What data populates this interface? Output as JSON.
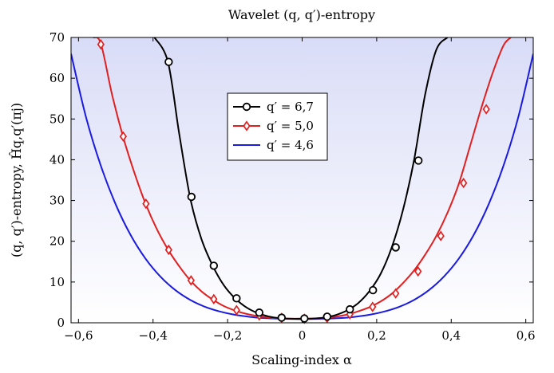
{
  "chart_data": {
    "type": "line",
    "title": "Wavelet (q, q′)-entropy",
    "xlabel": "Scaling-index α",
    "ylabel": "(q, q′)-entropy, Ĥq,q′(πj)",
    "xlim": [
      -0.62,
      0.62
    ],
    "ylim": [
      0,
      70
    ],
    "x_ticks": [
      -0.6,
      -0.4,
      -0.2,
      0,
      0.2,
      0.4,
      0.6
    ],
    "x_tick_labels": [
      "−0,6",
      "−0,4",
      "−0,2",
      "0",
      "0,2",
      "0,4",
      "0,6"
    ],
    "y_ticks": [
      0,
      10,
      20,
      30,
      40,
      50,
      60,
      70
    ],
    "y_tick_labels": [
      "0",
      "10",
      "20",
      "30",
      "40",
      "50",
      "60",
      "70"
    ],
    "legend_position": "upper-center",
    "colors": {
      "background_top": "#d9dcf7",
      "background_bottom": "#ffffff"
    },
    "series": [
      {
        "name": "q′ = 6,7",
        "color": "#000000",
        "marker": "circle",
        "x": [
          -0.396,
          -0.36,
          -0.33,
          -0.3,
          -0.27,
          -0.24,
          -0.21,
          -0.18,
          -0.15,
          -0.12,
          -0.09,
          -0.06,
          -0.03,
          0,
          0.03,
          0.06,
          0.09,
          0.12,
          0.15,
          0.18,
          0.21,
          0.24,
          0.27,
          0.3,
          0.33,
          0.36,
          0.39
        ],
        "y": [
          70,
          64,
          46.5,
          30.5,
          20.5,
          14,
          9.2,
          6,
          3.8,
          2.4,
          1.55,
          1.15,
          1.0,
          1.0,
          1.05,
          1.3,
          1.9,
          3.0,
          4.8,
          7.7,
          11.9,
          18.4,
          27.5,
          39.8,
          56,
          67,
          70
        ],
        "marker_x": [
          -0.358,
          -0.297,
          -0.237,
          -0.176,
          -0.115,
          -0.055,
          0.006,
          0.067,
          0.128,
          0.19,
          0.251,
          0.312
        ],
        "marker_y": [
          64,
          30.9,
          14,
          6,
          2.5,
          1.25,
          1.05,
          1.5,
          3.3,
          8.0,
          18.5,
          39.8
        ]
      },
      {
        "name": "q′ = 5,0",
        "color": "#e02020",
        "marker": "diamond",
        "x": [
          -0.56,
          -0.54,
          -0.51,
          -0.48,
          -0.45,
          -0.42,
          -0.39,
          -0.36,
          -0.33,
          -0.3,
          -0.27,
          -0.24,
          -0.21,
          -0.18,
          -0.15,
          -0.12,
          -0.09,
          -0.06,
          -0.03,
          0,
          0.03,
          0.06,
          0.09,
          0.12,
          0.15,
          0.18,
          0.21,
          0.24,
          0.27,
          0.3,
          0.33,
          0.36,
          0.39,
          0.42,
          0.45,
          0.48,
          0.51,
          0.54,
          0.56
        ],
        "y": [
          70,
          68.5,
          56,
          45.5,
          36.8,
          29.2,
          23,
          18,
          13.9,
          10.4,
          7.7,
          5.7,
          4.1,
          3.0,
          2.2,
          1.65,
          1.3,
          1.1,
          1.0,
          1.0,
          1.05,
          1.2,
          1.5,
          2.0,
          2.8,
          3.8,
          5.2,
          7.1,
          9.7,
          12.8,
          16.7,
          21.3,
          27,
          34,
          43.2,
          52.5,
          61,
          68,
          70
        ],
        "marker_x": [
          -0.54,
          -0.48,
          -0.419,
          -0.358,
          -0.298,
          -0.237,
          -0.176,
          -0.115,
          -0.055,
          0.006,
          0.067,
          0.128,
          0.189,
          0.251,
          0.311,
          0.372,
          0.433,
          0.494
        ],
        "marker_y": [
          68.3,
          45.7,
          29.2,
          17.9,
          10.4,
          5.8,
          3.1,
          1.8,
          1.2,
          1.0,
          1.2,
          2.1,
          3.9,
          7.2,
          12.6,
          21.3,
          34.3,
          52.4
        ]
      },
      {
        "name": "q′ = 4,6",
        "color": "#1a1ae0",
        "marker": "none",
        "x": [
          -0.62,
          -0.58,
          -0.54,
          -0.5,
          -0.46,
          -0.42,
          -0.38,
          -0.34,
          -0.3,
          -0.26,
          -0.22,
          -0.18,
          -0.14,
          -0.1,
          -0.06,
          -0.02,
          0,
          0.02,
          0.06,
          0.1,
          0.14,
          0.18,
          0.22,
          0.26,
          0.3,
          0.34,
          0.38,
          0.42,
          0.46,
          0.5,
          0.54,
          0.58,
          0.62
        ],
        "y": [
          66,
          50.5,
          38.5,
          29,
          21.5,
          15.7,
          11.3,
          8.0,
          5.6,
          3.9,
          2.75,
          1.95,
          1.45,
          1.15,
          1.0,
          0.92,
          0.9,
          0.92,
          1.0,
          1.15,
          1.45,
          1.95,
          2.75,
          3.9,
          5.6,
          8.0,
          11.3,
          15.7,
          21.5,
          29,
          38.5,
          50.5,
          66
        ]
      }
    ]
  }
}
